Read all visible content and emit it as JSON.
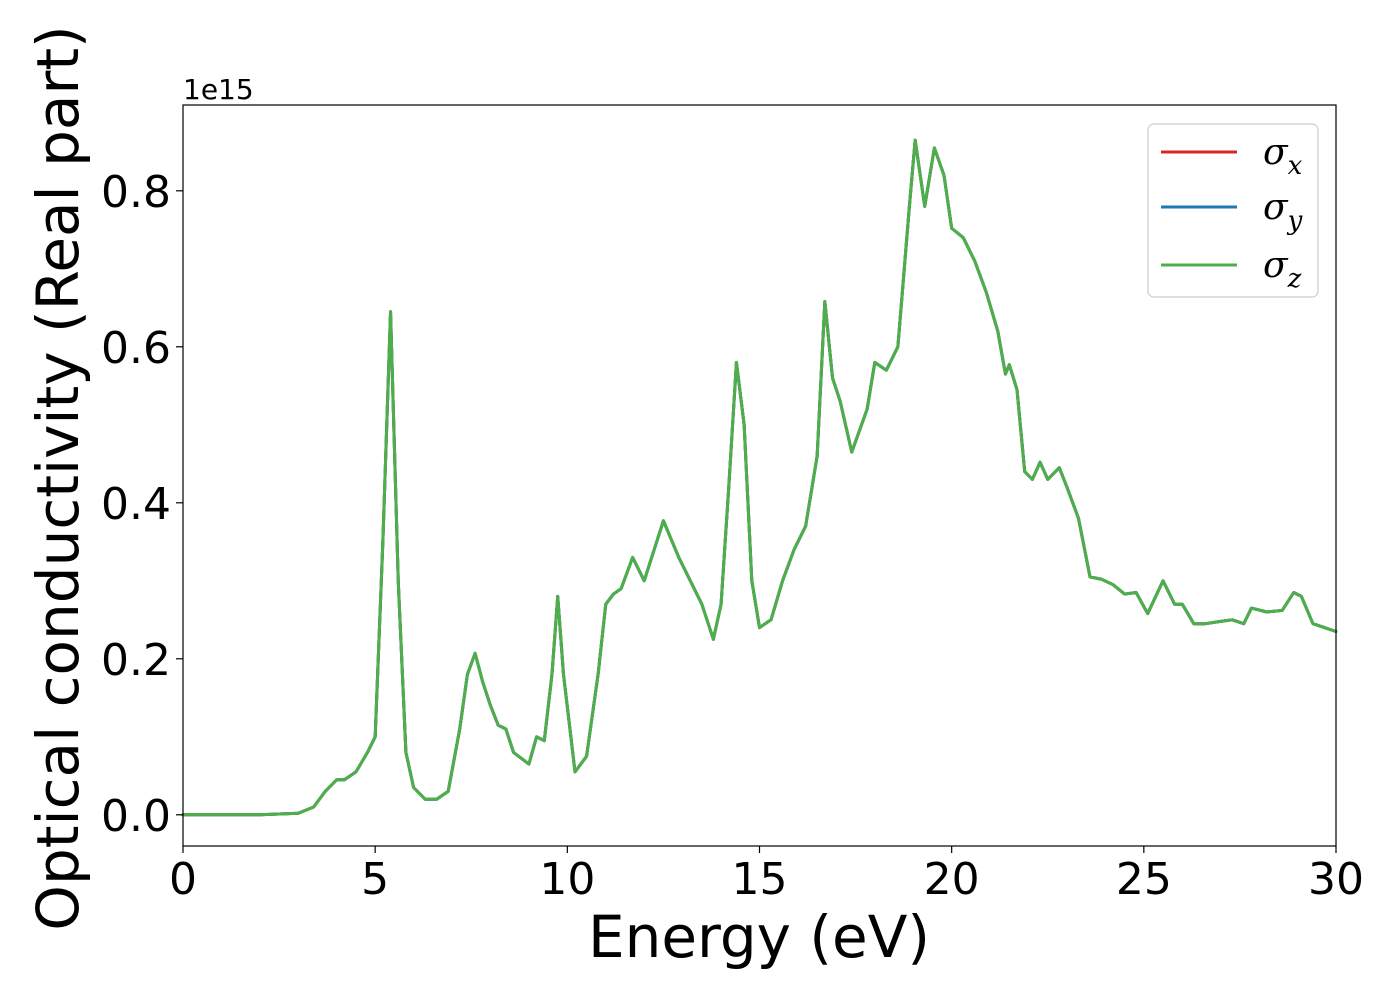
{
  "chart_data": {
    "type": "line",
    "title": "",
    "xlabel": "Energy (eV)",
    "ylabel": "Optical conductivity (Real part)",
    "y_offset_label": "1e15",
    "y_scale": 1000000000000000.0,
    "xlim": [
      0,
      30
    ],
    "ylim": [
      -0.04,
      0.91
    ],
    "x_ticks": [
      0,
      5,
      10,
      15,
      20,
      25,
      30
    ],
    "x_tick_labels": [
      "0",
      "5",
      "10",
      "15",
      "20",
      "25",
      "30"
    ],
    "y_ticks": [
      0.0,
      0.2,
      0.4,
      0.6,
      0.8
    ],
    "y_tick_labels": [
      "0.0",
      "0.2",
      "0.4",
      "0.6",
      "0.8"
    ],
    "grid": false,
    "legend": {
      "placement": "top-right",
      "entries": [
        {
          "label": "σ",
          "subscript": "x",
          "color": "#d62728"
        },
        {
          "label": "σ",
          "subscript": "y",
          "color": "#1f77b4"
        },
        {
          "label": "σ",
          "subscript": "z",
          "color": "#4daf4a"
        }
      ]
    },
    "series": [
      {
        "name": "σx",
        "color": "#d62728",
        "x": [
          0,
          1,
          2,
          3,
          3.4,
          3.7,
          4.0,
          4.2,
          4.5,
          4.8,
          5.0,
          5.2,
          5.4,
          5.6,
          5.8,
          6.0,
          6.3,
          6.6,
          6.9,
          7.2,
          7.4,
          7.6,
          7.8,
          8.0,
          8.2,
          8.4,
          8.6,
          9.0,
          9.2,
          9.4,
          9.6,
          9.75,
          9.9,
          10.2,
          10.5,
          10.8,
          11.0,
          11.2,
          11.4,
          11.7,
          12.0,
          12.5,
          12.9,
          13.2,
          13.5,
          13.8,
          14.0,
          14.2,
          14.4,
          14.6,
          14.8,
          15.0,
          15.3,
          15.6,
          15.9,
          16.2,
          16.5,
          16.7,
          16.9,
          17.1,
          17.4,
          17.8,
          18.0,
          18.3,
          18.6,
          18.9,
          19.05,
          19.3,
          19.55,
          19.8,
          20.0,
          20.3,
          20.6,
          20.9,
          21.2,
          21.4,
          21.5,
          21.7,
          21.9,
          22.1,
          22.3,
          22.5,
          22.8,
          23.0,
          23.3,
          23.6,
          23.9,
          24.2,
          24.5,
          24.8,
          25.1,
          25.5,
          25.8,
          26.0,
          26.3,
          26.6,
          27.0,
          27.3,
          27.6,
          27.8,
          28.2,
          28.6,
          28.9,
          29.1,
          29.4,
          29.7,
          30.0
        ],
        "y": [
          0,
          0,
          0,
          0.002,
          0.01,
          0.03,
          0.045,
          0.045,
          0.055,
          0.08,
          0.1,
          0.35,
          0.645,
          0.3,
          0.08,
          0.035,
          0.02,
          0.02,
          0.03,
          0.11,
          0.18,
          0.207,
          0.17,
          0.14,
          0.115,
          0.11,
          0.08,
          0.065,
          0.1,
          0.095,
          0.18,
          0.28,
          0.18,
          0.055,
          0.075,
          0.18,
          0.27,
          0.283,
          0.29,
          0.33,
          0.3,
          0.377,
          0.33,
          0.3,
          0.27,
          0.225,
          0.27,
          0.42,
          0.58,
          0.5,
          0.3,
          0.24,
          0.25,
          0.3,
          0.34,
          0.37,
          0.46,
          0.658,
          0.56,
          0.53,
          0.465,
          0.52,
          0.58,
          0.57,
          0.6,
          0.78,
          0.865,
          0.78,
          0.855,
          0.82,
          0.752,
          0.74,
          0.71,
          0.67,
          0.62,
          0.565,
          0.577,
          0.545,
          0.44,
          0.43,
          0.452,
          0.43,
          0.445,
          0.42,
          0.38,
          0.305,
          0.302,
          0.295,
          0.283,
          0.285,
          0.258,
          0.3,
          0.27,
          0.27,
          0.245,
          0.245,
          0.248,
          0.25,
          0.245,
          0.265,
          0.26,
          0.262,
          0.285,
          0.28,
          0.245,
          0.24,
          0.235
        ]
      },
      {
        "name": "σy",
        "color": "#1f77b4",
        "x": [
          0,
          1,
          2,
          3,
          3.4,
          3.7,
          4.0,
          4.2,
          4.5,
          4.8,
          5.0,
          5.2,
          5.4,
          5.6,
          5.8,
          6.0,
          6.3,
          6.6,
          6.9,
          7.2,
          7.4,
          7.6,
          7.8,
          8.0,
          8.2,
          8.4,
          8.6,
          9.0,
          9.2,
          9.4,
          9.6,
          9.75,
          9.9,
          10.2,
          10.5,
          10.8,
          11.0,
          11.2,
          11.4,
          11.7,
          12.0,
          12.5,
          12.9,
          13.2,
          13.5,
          13.8,
          14.0,
          14.2,
          14.4,
          14.6,
          14.8,
          15.0,
          15.3,
          15.6,
          15.9,
          16.2,
          16.5,
          16.7,
          16.9,
          17.1,
          17.4,
          17.8,
          18.0,
          18.3,
          18.6,
          18.9,
          19.05,
          19.3,
          19.55,
          19.8,
          20.0,
          20.3,
          20.6,
          20.9,
          21.2,
          21.4,
          21.5,
          21.7,
          21.9,
          22.1,
          22.3,
          22.5,
          22.8,
          23.0,
          23.3,
          23.6,
          23.9,
          24.2,
          24.5,
          24.8,
          25.1,
          25.5,
          25.8,
          26.0,
          26.3,
          26.6,
          27.0,
          27.3,
          27.6,
          27.8,
          28.2,
          28.6,
          28.9,
          29.1,
          29.4,
          29.7,
          30.0
        ],
        "y": [
          0,
          0,
          0,
          0.002,
          0.01,
          0.03,
          0.045,
          0.045,
          0.055,
          0.08,
          0.1,
          0.35,
          0.645,
          0.3,
          0.08,
          0.035,
          0.02,
          0.02,
          0.03,
          0.11,
          0.18,
          0.207,
          0.17,
          0.14,
          0.115,
          0.11,
          0.08,
          0.065,
          0.1,
          0.095,
          0.18,
          0.28,
          0.18,
          0.055,
          0.075,
          0.18,
          0.27,
          0.283,
          0.29,
          0.33,
          0.3,
          0.377,
          0.33,
          0.3,
          0.27,
          0.225,
          0.27,
          0.42,
          0.58,
          0.5,
          0.3,
          0.24,
          0.25,
          0.3,
          0.34,
          0.37,
          0.46,
          0.658,
          0.56,
          0.53,
          0.465,
          0.52,
          0.58,
          0.57,
          0.6,
          0.78,
          0.865,
          0.78,
          0.855,
          0.82,
          0.752,
          0.74,
          0.71,
          0.67,
          0.62,
          0.565,
          0.577,
          0.545,
          0.44,
          0.43,
          0.452,
          0.43,
          0.445,
          0.42,
          0.38,
          0.305,
          0.302,
          0.295,
          0.283,
          0.285,
          0.258,
          0.3,
          0.27,
          0.27,
          0.245,
          0.245,
          0.248,
          0.25,
          0.245,
          0.265,
          0.26,
          0.262,
          0.285,
          0.28,
          0.245,
          0.24,
          0.235
        ]
      },
      {
        "name": "σz",
        "color": "#4daf4a",
        "x": [
          0,
          1,
          2,
          3,
          3.4,
          3.7,
          4.0,
          4.2,
          4.5,
          4.8,
          5.0,
          5.2,
          5.4,
          5.6,
          5.8,
          6.0,
          6.3,
          6.6,
          6.9,
          7.2,
          7.4,
          7.6,
          7.8,
          8.0,
          8.2,
          8.4,
          8.6,
          9.0,
          9.2,
          9.4,
          9.6,
          9.75,
          9.9,
          10.2,
          10.5,
          10.8,
          11.0,
          11.2,
          11.4,
          11.7,
          12.0,
          12.5,
          12.9,
          13.2,
          13.5,
          13.8,
          14.0,
          14.2,
          14.4,
          14.6,
          14.8,
          15.0,
          15.3,
          15.6,
          15.9,
          16.2,
          16.5,
          16.7,
          16.9,
          17.1,
          17.4,
          17.8,
          18.0,
          18.3,
          18.6,
          18.9,
          19.05,
          19.3,
          19.55,
          19.8,
          20.0,
          20.3,
          20.6,
          20.9,
          21.2,
          21.4,
          21.5,
          21.7,
          21.9,
          22.1,
          22.3,
          22.5,
          22.8,
          23.0,
          23.3,
          23.6,
          23.9,
          24.2,
          24.5,
          24.8,
          25.1,
          25.5,
          25.8,
          26.0,
          26.3,
          26.6,
          27.0,
          27.3,
          27.6,
          27.8,
          28.2,
          28.6,
          28.9,
          29.1,
          29.4,
          29.7,
          30.0
        ],
        "y": [
          0,
          0,
          0,
          0.002,
          0.01,
          0.03,
          0.045,
          0.045,
          0.055,
          0.08,
          0.1,
          0.35,
          0.645,
          0.3,
          0.08,
          0.035,
          0.02,
          0.02,
          0.03,
          0.11,
          0.18,
          0.207,
          0.17,
          0.14,
          0.115,
          0.11,
          0.08,
          0.065,
          0.1,
          0.095,
          0.18,
          0.28,
          0.18,
          0.055,
          0.075,
          0.18,
          0.27,
          0.283,
          0.29,
          0.33,
          0.3,
          0.377,
          0.33,
          0.3,
          0.27,
          0.225,
          0.27,
          0.42,
          0.58,
          0.5,
          0.3,
          0.24,
          0.25,
          0.3,
          0.34,
          0.37,
          0.46,
          0.658,
          0.56,
          0.53,
          0.465,
          0.52,
          0.58,
          0.57,
          0.6,
          0.78,
          0.865,
          0.78,
          0.855,
          0.82,
          0.752,
          0.74,
          0.71,
          0.67,
          0.62,
          0.565,
          0.577,
          0.545,
          0.44,
          0.43,
          0.452,
          0.43,
          0.445,
          0.42,
          0.38,
          0.305,
          0.302,
          0.295,
          0.283,
          0.285,
          0.258,
          0.3,
          0.27,
          0.27,
          0.245,
          0.245,
          0.248,
          0.25,
          0.245,
          0.265,
          0.26,
          0.262,
          0.285,
          0.28,
          0.245,
          0.24,
          0.235
        ]
      }
    ]
  }
}
